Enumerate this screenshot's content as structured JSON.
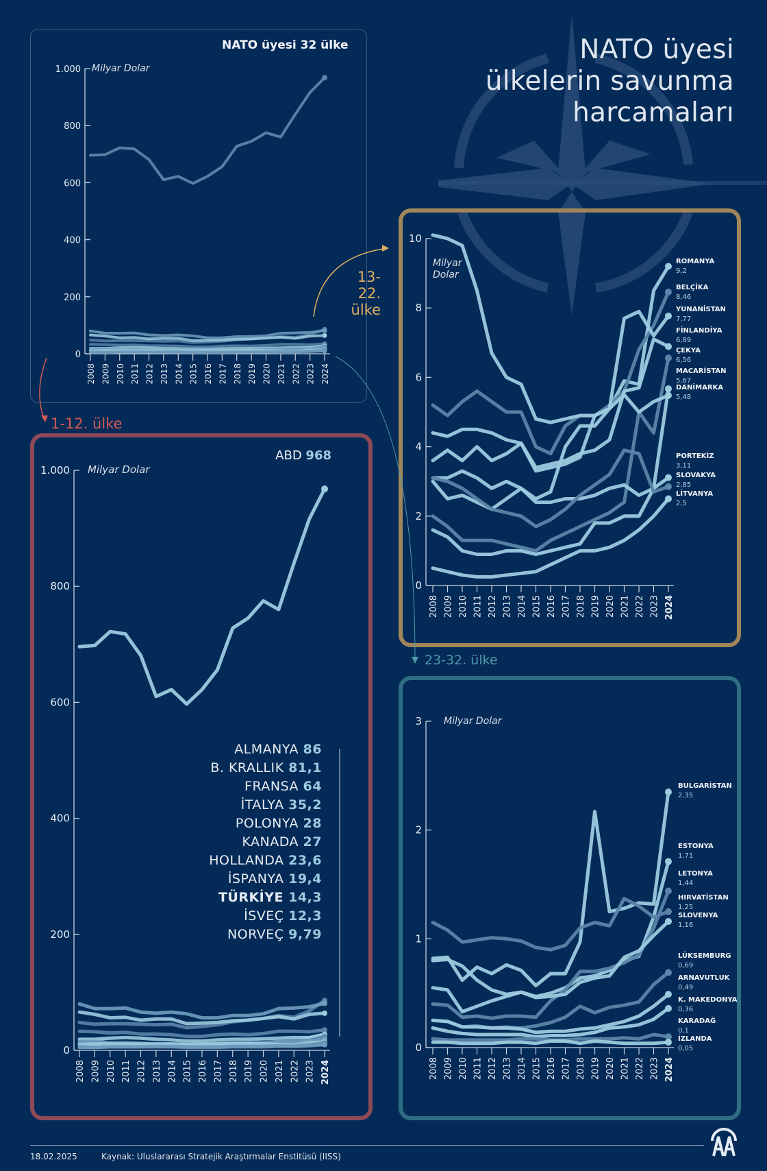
{
  "header": {
    "title_lines": [
      "NATO üyesi",
      "ülkelerin savunma",
      "harcamaları"
    ]
  },
  "sections": {
    "all": "NATO üyesi 32 ülke",
    "g1": "1-12. ülke",
    "g2_line1": "13-22.",
    "g2_line2": "ülke",
    "g3": "23-32. ülke"
  },
  "footer": {
    "date": "18.02.2025",
    "source": "Kaynak: Uluslararası Stratejik Araştırmalar Enstitüsü (IISS)",
    "logo": "AA"
  },
  "colors": {
    "background": "#042a57",
    "line_light": "#9ccbe0",
    "line_mid": "#6f9dbd",
    "line_dark": "#5a84a8",
    "g1_accent": "#8f4a57",
    "g1_label": "#d25a55",
    "g2_accent": "#a0865a",
    "g2_label": "#e0b060",
    "g3_accent": "#2f6e82",
    "g3_label": "#4f9aa6"
  },
  "chart_data": [
    {
      "id": "all",
      "type": "line",
      "title": "NATO üyesi 32 ülke",
      "ylabel": "Milyar Dolar",
      "ylim": [
        0,
        1000
      ],
      "yticks": [
        0,
        200,
        400,
        600,
        800,
        1000
      ],
      "ytick_labels": [
        "0",
        "200",
        "400",
        "600",
        "800",
        "1.000"
      ],
      "x": [
        "2008",
        "2009",
        "2010",
        "2011",
        "2012",
        "2013",
        "2014",
        "2015",
        "2016",
        "2017",
        "2018",
        "2019",
        "2020",
        "2021",
        "2022",
        "2023",
        "2024"
      ],
      "note": "ABD line plus other members near the bottom (same series as group charts)",
      "series": [
        {
          "name": "ABD",
          "values": [
            696,
            698,
            722,
            718,
            681,
            610,
            622,
            597,
            622,
            656,
            728,
            745,
            775,
            760,
            840,
            916,
            968
          ]
        },
        {
          "name": "ALMANYA",
          "values": [
            48,
            45,
            46,
            46,
            45,
            44,
            45,
            39,
            41,
            44,
            49,
            52,
            55,
            60,
            57,
            68,
            86
          ]
        },
        {
          "name": "B. KRALLIK",
          "values": [
            80,
            72,
            72,
            73,
            66,
            64,
            66,
            63,
            56,
            56,
            60,
            60,
            63,
            72,
            73,
            75,
            81.1
          ]
        },
        {
          "name": "FRANSA",
          "values": [
            66,
            62,
            56,
            57,
            52,
            54,
            54,
            46,
            47,
            48,
            51,
            52,
            55,
            58,
            54,
            62,
            64
          ]
        },
        {
          "name": "İTALYA",
          "values": [
            33,
            32,
            30,
            31,
            28,
            28,
            27,
            24,
            24,
            27,
            28,
            27,
            29,
            33,
            33,
            32,
            35.2
          ]
        },
        {
          "name": "POLONYA",
          "values": [
            9,
            9,
            8,
            9,
            9,
            9,
            10,
            10,
            9,
            10,
            11,
            12,
            13,
            14,
            17,
            22,
            28
          ]
        },
        {
          "name": "KANADA",
          "values": [
            19,
            19,
            21,
            22,
            21,
            19,
            18,
            16,
            16,
            18,
            19,
            19,
            20,
            21,
            22,
            22,
            27
          ]
        },
        {
          "name": "HOLLANDA",
          "values": [
            12,
            12,
            11,
            11,
            10,
            10,
            10,
            9,
            9,
            10,
            11,
            12,
            13,
            15,
            16,
            17,
            23.6
          ]
        },
        {
          "name": "İSPANYA",
          "values": [
            15,
            15,
            13,
            13,
            12,
            11,
            11,
            11,
            11,
            12,
            12,
            12,
            13,
            15,
            14,
            16,
            19.4
          ]
        },
        {
          "name": "TÜRKİYE",
          "values": [
            10,
            11,
            11,
            11,
            11,
            11,
            11,
            10,
            11,
            11,
            12,
            12,
            11,
            10,
            9,
            13,
            14.3
          ]
        },
        {
          "name": "İSVEÇ",
          "values": [
            6,
            5,
            6,
            6,
            6,
            6,
            6,
            5,
            5,
            5,
            6,
            6,
            6,
            7,
            7,
            9,
            12.3
          ]
        },
        {
          "name": "NORVEÇ",
          "values": [
            5,
            5,
            6,
            6,
            6,
            7,
            7,
            6,
            6,
            6,
            7,
            7,
            7,
            8,
            7,
            8,
            9.79
          ]
        }
      ]
    },
    {
      "id": "g1",
      "type": "line",
      "title": "1-12. ülke",
      "ylabel": "Milyar Dolar",
      "ylim": [
        0,
        1000
      ],
      "yticks": [
        0,
        200,
        400,
        600,
        800,
        1000
      ],
      "ytick_labels": [
        "0",
        "200",
        "400",
        "600",
        "800",
        "1.000"
      ],
      "x": [
        "2008",
        "2009",
        "2010",
        "2011",
        "2012",
        "2013",
        "2014",
        "2015",
        "2016",
        "2017",
        "2018",
        "2019",
        "2020",
        "2021",
        "2022",
        "2023",
        "2024"
      ],
      "highlight": {
        "name": "ABD",
        "value": "968"
      },
      "legend": [
        {
          "name": "ALMANYA",
          "value": "86"
        },
        {
          "name": "B. KRALLIK",
          "value": "81,1"
        },
        {
          "name": "FRANSA",
          "value": "64"
        },
        {
          "name": "İTALYA",
          "value": "35,2"
        },
        {
          "name": "POLONYA",
          "value": "28"
        },
        {
          "name": "KANADA",
          "value": "27"
        },
        {
          "name": "HOLLANDA",
          "value": "23,6"
        },
        {
          "name": "İSPANYA",
          "value": "19,4"
        },
        {
          "name": "TÜRKİYE",
          "value": "14,3",
          "bold": true
        },
        {
          "name": "İSVEÇ",
          "value": "12,3"
        },
        {
          "name": "NORVEÇ",
          "value": "9,79"
        }
      ]
    },
    {
      "id": "g2",
      "type": "line",
      "title": "13-22. ülke",
      "ylabel": "Milyar Dolar",
      "ylim": [
        0,
        10
      ],
      "yticks": [
        0,
        2,
        4,
        6,
        8,
        10
      ],
      "ytick_labels": [
        "0",
        "2",
        "4",
        "6",
        "8",
        "10"
      ],
      "x": [
        "2008",
        "2009",
        "2010",
        "2011",
        "2012",
        "2013",
        "2014",
        "2015",
        "2016",
        "2017",
        "2018",
        "2019",
        "2020",
        "2021",
        "2022",
        "2023",
        "2024"
      ],
      "series": [
        {
          "name": "ROMANYA",
          "label": "9,2",
          "values": [
            3.0,
            2.5,
            2.6,
            2.4,
            2.2,
            2.5,
            2.8,
            2.5,
            2.7,
            4.0,
            4.6,
            4.6,
            5.1,
            5.9,
            5.8,
            8.5,
            9.2
          ],
          "tone": "light"
        },
        {
          "name": "BELÇİKA",
          "label": "8,46",
          "values": [
            5.2,
            4.9,
            5.3,
            5.6,
            5.3,
            5.0,
            5.0,
            4.0,
            3.8,
            4.6,
            4.9,
            4.9,
            5.2,
            5.6,
            6.8,
            7.5,
            8.46
          ],
          "tone": "dark"
        },
        {
          "name": "YUNANİSTAN",
          "label": "7,77",
          "values": [
            10.1,
            10.0,
            9.8,
            8.5,
            6.7,
            6.0,
            5.8,
            4.8,
            4.7,
            4.8,
            4.9,
            4.9,
            5.1,
            7.7,
            7.9,
            7.2,
            7.77
          ],
          "tone": "light"
        },
        {
          "name": "FİNLANDİYA",
          "label": "6,89",
          "values": [
            3.6,
            3.9,
            3.6,
            4.0,
            3.6,
            3.8,
            4.1,
            3.4,
            3.5,
            3.6,
            3.8,
            3.9,
            4.2,
            5.6,
            5.7,
            7.1,
            6.89
          ],
          "tone": "light"
        },
        {
          "name": "ÇEKYA",
          "label": "6,56",
          "values": [
            2.0,
            1.7,
            1.3,
            1.3,
            1.3,
            1.2,
            1.1,
            1.0,
            1.3,
            1.5,
            1.7,
            1.9,
            2.1,
            2.4,
            5.0,
            4.4,
            6.56
          ],
          "tone": "dark"
        },
        {
          "name": "MACARİSTAN",
          "label": "5,67",
          "values": [
            1.6,
            1.4,
            1.0,
            0.9,
            0.9,
            1.0,
            1.0,
            0.9,
            1.0,
            1.1,
            1.2,
            1.8,
            1.8,
            2.0,
            2.0,
            2.8,
            5.67
          ],
          "tone": "light"
        },
        {
          "name": "DANİMARKA",
          "label": "5,48",
          "values": [
            4.4,
            4.3,
            4.5,
            4.5,
            4.4,
            4.2,
            4.1,
            3.3,
            3.4,
            3.5,
            3.7,
            4.9,
            5.1,
            5.5,
            5.0,
            5.3,
            5.48
          ],
          "tone": "light"
        },
        {
          "name": "PORTEKİZ",
          "label": "3,11",
          "values": [
            3.1,
            3.1,
            3.3,
            3.1,
            2.8,
            3.0,
            2.8,
            2.4,
            2.4,
            2.5,
            2.5,
            2.6,
            2.8,
            2.9,
            2.6,
            2.8,
            3.11
          ],
          "tone": "light"
        },
        {
          "name": "SLOVAKYA",
          "label": "2,85",
          "values": [
            3.1,
            3.0,
            2.8,
            2.5,
            2.2,
            2.1,
            2.0,
            1.7,
            1.9,
            2.2,
            2.6,
            2.9,
            3.2,
            3.9,
            3.8,
            2.7,
            2.85
          ],
          "tone": "dark"
        },
        {
          "name": "LİTVANYA",
          "label": "2,5",
          "values": [
            0.5,
            0.4,
            0.3,
            0.25,
            0.25,
            0.3,
            0.35,
            0.4,
            0.6,
            0.8,
            1.0,
            1.0,
            1.1,
            1.3,
            1.6,
            2.0,
            2.5
          ],
          "tone": "light"
        }
      ]
    },
    {
      "id": "g3",
      "type": "line",
      "title": "23-32. ülke",
      "ylabel": "Milyar Dolar",
      "ylim": [
        0,
        3
      ],
      "yticks": [
        0,
        1,
        2,
        3
      ],
      "ytick_labels": [
        "0",
        "1",
        "2",
        "3"
      ],
      "x": [
        "2008",
        "2009",
        "2010",
        "2011",
        "2012",
        "2013",
        "2014",
        "2015",
        "2016",
        "2017",
        "2018",
        "2019",
        "2020",
        "2021",
        "2022",
        "2023",
        "2024"
      ],
      "series": [
        {
          "name": "BULGARİSTAN",
          "label": "2,35",
          "values": [
            0.82,
            0.83,
            0.62,
            0.74,
            0.68,
            0.76,
            0.71,
            0.57,
            0.68,
            0.68,
            0.97,
            2.17,
            1.25,
            1.28,
            1.33,
            1.32,
            2.35
          ],
          "tone": "light"
        },
        {
          "name": "ESTONYA",
          "label": "1,71",
          "values": [
            0.55,
            0.53,
            0.33,
            0.38,
            0.43,
            0.47,
            0.51,
            0.47,
            0.5,
            0.55,
            0.64,
            0.66,
            0.71,
            0.8,
            0.84,
            1.2,
            1.71
          ],
          "tone": "light"
        },
        {
          "name": "LETONYA",
          "label": "1,44",
          "values": [
            0.4,
            0.39,
            0.28,
            0.29,
            0.27,
            0.29,
            0.29,
            0.28,
            0.43,
            0.53,
            0.7,
            0.7,
            0.73,
            0.78,
            0.85,
            1.1,
            1.44
          ],
          "tone": "dark"
        },
        {
          "name": "HIRVATİSTAN",
          "label": "1,25",
          "values": [
            1.15,
            1.08,
            0.97,
            0.99,
            1.01,
            1.0,
            0.98,
            0.92,
            0.9,
            0.94,
            1.1,
            1.15,
            1.12,
            1.37,
            1.3,
            1.2,
            1.25
          ],
          "tone": "dark"
        },
        {
          "name": "SLOVENYA",
          "label": "1,16",
          "values": [
            0.8,
            0.81,
            0.75,
            0.62,
            0.53,
            0.49,
            0.51,
            0.46,
            0.47,
            0.49,
            0.6,
            0.64,
            0.66,
            0.83,
            0.89,
            1.03,
            1.16
          ],
          "tone": "light"
        },
        {
          "name": "LÜKSEMBURG",
          "label": "0,69",
          "values": [
            0.25,
            0.24,
            0.19,
            0.2,
            0.18,
            0.19,
            0.18,
            0.2,
            0.23,
            0.28,
            0.38,
            0.32,
            0.37,
            0.39,
            0.42,
            0.58,
            0.69
          ],
          "tone": "dark"
        },
        {
          "name": "ARNAVUTLUK",
          "label": "0,49",
          "values": [
            0.25,
            0.24,
            0.19,
            0.19,
            0.18,
            0.18,
            0.17,
            0.14,
            0.15,
            0.15,
            0.17,
            0.18,
            0.21,
            0.24,
            0.29,
            0.38,
            0.49
          ],
          "tone": "light"
        },
        {
          "name": "K. MAKEDONYA",
          "label": "0,36",
          "values": [
            0.18,
            0.15,
            0.13,
            0.12,
            0.12,
            0.12,
            0.12,
            0.1,
            0.11,
            0.11,
            0.12,
            0.14,
            0.18,
            0.19,
            0.21,
            0.26,
            0.36
          ],
          "tone": "light"
        },
        {
          "name": "KARADAĞ",
          "label": "0,1",
          "values": [
            0.08,
            0.07,
            0.07,
            0.07,
            0.07,
            0.07,
            0.08,
            0.08,
            0.07,
            0.07,
            0.08,
            0.08,
            0.08,
            0.09,
            0.08,
            0.12,
            0.1
          ],
          "tone": "dark"
        },
        {
          "name": "İZLANDA",
          "label": "0,05",
          "values": [
            0.05,
            0.05,
            0.04,
            0.04,
            0.04,
            0.05,
            0.05,
            0.04,
            0.06,
            0.06,
            0.04,
            0.06,
            0.05,
            0.04,
            0.04,
            0.04,
            0.05
          ],
          "tone": "light"
        }
      ]
    }
  ]
}
